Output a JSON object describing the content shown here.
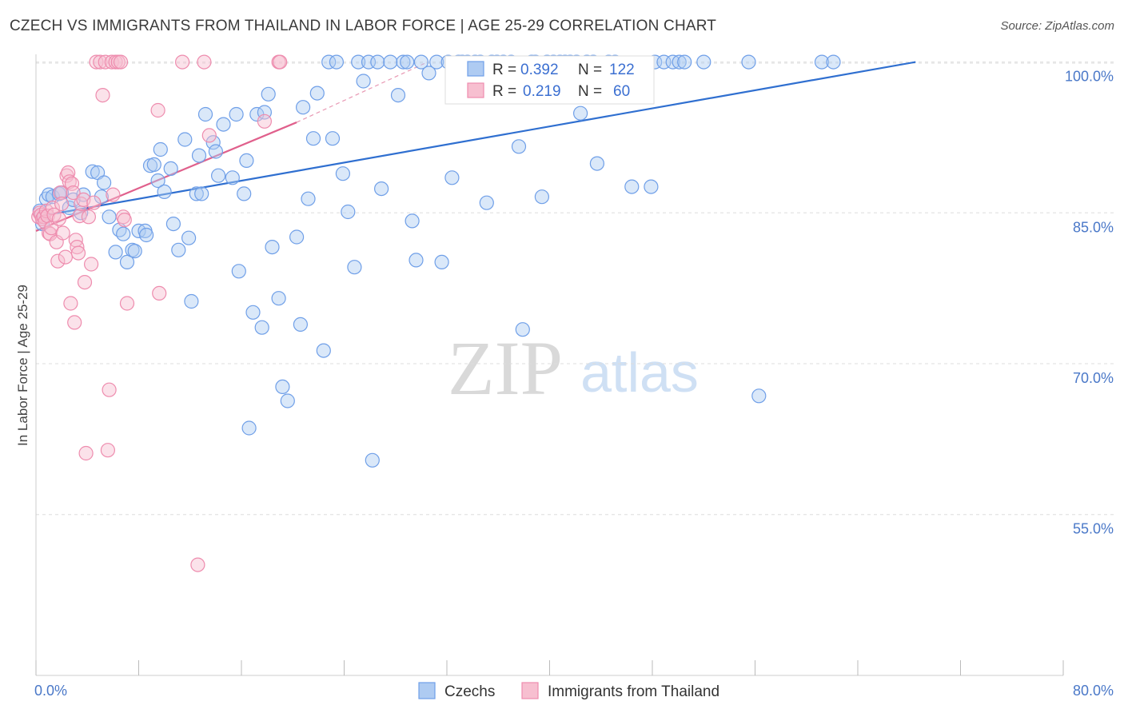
{
  "chart_data": {
    "type": "scatter",
    "title": "CZECH VS IMMIGRANTS FROM THAILAND IN LABOR FORCE | AGE 25-29 CORRELATION CHART",
    "source": "Source: ZipAtlas.com",
    "xlabel": "",
    "ylabel": "In Labor Force | Age 25-29",
    "xlim": [
      0,
      80
    ],
    "ylim": [
      39,
      101
    ],
    "x_tick_labels": [
      "0.0%",
      "80.0%"
    ],
    "y_ticks": [
      {
        "value": 100,
        "label": "100.0%"
      },
      {
        "value": 85,
        "label": "85.0%"
      },
      {
        "value": 70,
        "label": "70.0%"
      },
      {
        "value": 55,
        "label": "55.0%"
      }
    ],
    "watermark": {
      "zip": "ZIP",
      "atlas": "atlas"
    },
    "series": [
      {
        "name": "Czechs",
        "color": "#6f9fe8",
        "fill": "#aecbf2",
        "stats": {
          "r_label": "R =",
          "r": "0.392",
          "n_label": "N =",
          "n": "122"
        },
        "trend": {
          "x0": 0,
          "y0": 84.6,
          "x1": 68.5,
          "y1": 100
        },
        "points": [
          [
            0.3,
            85.2
          ],
          [
            0.5,
            83.9
          ],
          [
            0.8,
            86.4
          ],
          [
            1.0,
            86.8
          ],
          [
            1.3,
            86.6
          ],
          [
            1.8,
            86.9
          ],
          [
            2.0,
            87.0
          ],
          [
            2.6,
            85.5
          ],
          [
            2.9,
            86.3
          ],
          [
            3.5,
            85.0
          ],
          [
            3.7,
            86.8
          ],
          [
            4.4,
            89.1
          ],
          [
            4.8,
            89.0
          ],
          [
            5.1,
            86.6
          ],
          [
            5.3,
            88.0
          ],
          [
            5.7,
            84.6
          ],
          [
            6.2,
            81.1
          ],
          [
            6.5,
            83.3
          ],
          [
            6.8,
            82.9
          ],
          [
            7.1,
            80.1
          ],
          [
            7.5,
            81.3
          ],
          [
            7.7,
            81.2
          ],
          [
            8.0,
            83.2
          ],
          [
            8.5,
            83.2
          ],
          [
            8.6,
            82.8
          ],
          [
            8.9,
            89.7
          ],
          [
            9.2,
            89.8
          ],
          [
            9.5,
            88.2
          ],
          [
            9.7,
            91.3
          ],
          [
            10.0,
            87.1
          ],
          [
            10.5,
            89.4
          ],
          [
            10.7,
            83.9
          ],
          [
            11.1,
            81.3
          ],
          [
            11.6,
            92.3
          ],
          [
            11.9,
            82.5
          ],
          [
            12.1,
            76.2
          ],
          [
            12.5,
            86.9
          ],
          [
            12.7,
            90.7
          ],
          [
            12.9,
            86.9
          ],
          [
            13.2,
            94.8
          ],
          [
            13.8,
            92.0
          ],
          [
            14.0,
            91.1
          ],
          [
            14.2,
            88.7
          ],
          [
            14.6,
            93.8
          ],
          [
            15.3,
            88.5
          ],
          [
            15.6,
            94.8
          ],
          [
            15.8,
            79.2
          ],
          [
            16.2,
            86.9
          ],
          [
            16.4,
            90.2
          ],
          [
            16.6,
            63.6
          ],
          [
            16.9,
            75.1
          ],
          [
            17.2,
            94.8
          ],
          [
            17.6,
            73.6
          ],
          [
            17.8,
            95.0
          ],
          [
            18.1,
            96.8
          ],
          [
            18.4,
            81.6
          ],
          [
            18.9,
            76.5
          ],
          [
            19.2,
            67.7
          ],
          [
            19.6,
            66.3
          ],
          [
            20.3,
            82.6
          ],
          [
            20.6,
            73.9
          ],
          [
            20.8,
            95.5
          ],
          [
            21.2,
            86.4
          ],
          [
            21.6,
            92.4
          ],
          [
            21.9,
            96.9
          ],
          [
            22.4,
            71.3
          ],
          [
            22.8,
            100
          ],
          [
            23.1,
            92.4
          ],
          [
            23.4,
            100
          ],
          [
            23.9,
            88.9
          ],
          [
            24.3,
            85.1
          ],
          [
            24.8,
            79.6
          ],
          [
            25.1,
            100
          ],
          [
            25.5,
            98.1
          ],
          [
            25.9,
            100
          ],
          [
            26.2,
            60.4
          ],
          [
            26.6,
            100
          ],
          [
            26.9,
            87.4
          ],
          [
            27.6,
            100
          ],
          [
            28.2,
            96.7
          ],
          [
            28.6,
            100
          ],
          [
            28.9,
            100
          ],
          [
            29.3,
            84.2
          ],
          [
            29.6,
            80.3
          ],
          [
            30.0,
            100
          ],
          [
            30.6,
            98.9
          ],
          [
            31.2,
            100
          ],
          [
            31.6,
            80.1
          ],
          [
            32.1,
            100
          ],
          [
            32.4,
            88.5
          ],
          [
            32.9,
            100
          ],
          [
            33.2,
            100
          ],
          [
            33.6,
            100
          ],
          [
            34.2,
            100
          ],
          [
            34.6,
            100
          ],
          [
            35.1,
            86.0
          ],
          [
            35.5,
            100
          ],
          [
            35.9,
            100
          ],
          [
            36.4,
            100
          ],
          [
            37.0,
            100
          ],
          [
            37.6,
            91.6
          ],
          [
            37.9,
            73.4
          ],
          [
            38.6,
            100
          ],
          [
            38.9,
            100
          ],
          [
            39.4,
            86.6
          ],
          [
            39.8,
            100
          ],
          [
            40.3,
            100
          ],
          [
            40.8,
            100
          ],
          [
            41.2,
            100
          ],
          [
            41.6,
            100
          ],
          [
            42.1,
            100
          ],
          [
            42.4,
            94.9
          ],
          [
            42.9,
            100
          ],
          [
            43.4,
            100
          ],
          [
            43.7,
            89.9
          ],
          [
            44.6,
            100
          ],
          [
            45.1,
            100
          ],
          [
            46.4,
            87.6
          ],
          [
            47.9,
            87.6
          ],
          [
            48.2,
            100
          ],
          [
            48.9,
            100
          ],
          [
            49.6,
            100
          ],
          [
            50.1,
            100
          ],
          [
            50.5,
            100
          ],
          [
            52.0,
            100
          ],
          [
            55.5,
            100
          ],
          [
            56.3,
            66.8
          ],
          [
            61.2,
            100
          ],
          [
            62.1,
            100
          ]
        ]
      },
      {
        "name": "Immigrants from Thailand",
        "color": "#ee8cae",
        "fill": "#f7bfd0",
        "stats": {
          "r_label": "R =",
          "r": "0.219",
          "n_label": "N =",
          "n": "60"
        },
        "trend": {
          "x0": 0,
          "y0": 83.2,
          "x1": 20.3,
          "y1": 94.0
        },
        "trend_dashed": {
          "x0": 20.3,
          "y0": 94.0,
          "x1": 30.5,
          "y1": 100
        },
        "points": [
          [
            0.2,
            84.6
          ],
          [
            0.3,
            85.0
          ],
          [
            0.4,
            84.8
          ],
          [
            0.5,
            84.4
          ],
          [
            0.6,
            84.6
          ],
          [
            0.7,
            84.1
          ],
          [
            0.8,
            85.2
          ],
          [
            0.9,
            84.7
          ],
          [
            1.0,
            83.0
          ],
          [
            1.1,
            82.9
          ],
          [
            1.2,
            83.5
          ],
          [
            1.3,
            85.5
          ],
          [
            1.4,
            84.8
          ],
          [
            1.6,
            82.1
          ],
          [
            1.7,
            80.2
          ],
          [
            1.8,
            84.4
          ],
          [
            1.9,
            87.0
          ],
          [
            2.0,
            85.9
          ],
          [
            2.1,
            83.0
          ],
          [
            2.3,
            80.6
          ],
          [
            2.4,
            88.7
          ],
          [
            2.5,
            89.0
          ],
          [
            2.6,
            88.1
          ],
          [
            2.7,
            76.0
          ],
          [
            2.8,
            87.9
          ],
          [
            2.9,
            87.0
          ],
          [
            3.0,
            74.1
          ],
          [
            3.1,
            82.3
          ],
          [
            3.2,
            81.6
          ],
          [
            3.3,
            81.0
          ],
          [
            3.4,
            84.7
          ],
          [
            3.5,
            85.9
          ],
          [
            3.7,
            86.3
          ],
          [
            3.8,
            78.1
          ],
          [
            3.9,
            61.1
          ],
          [
            4.1,
            84.6
          ],
          [
            4.3,
            79.9
          ],
          [
            4.5,
            86.0
          ],
          [
            4.7,
            100
          ],
          [
            5.0,
            100
          ],
          [
            5.2,
            96.7
          ],
          [
            5.4,
            100
          ],
          [
            5.6,
            61.4
          ],
          [
            5.7,
            67.4
          ],
          [
            5.9,
            100
          ],
          [
            6.0,
            86.8
          ],
          [
            6.2,
            100
          ],
          [
            6.4,
            100
          ],
          [
            6.6,
            100
          ],
          [
            6.8,
            84.6
          ],
          [
            6.9,
            84.3
          ],
          [
            7.1,
            76.0
          ],
          [
            9.5,
            95.2
          ],
          [
            9.6,
            77.0
          ],
          [
            11.4,
            100
          ],
          [
            12.6,
            50.0
          ],
          [
            13.1,
            100
          ],
          [
            13.5,
            92.7
          ],
          [
            17.8,
            94.1
          ],
          [
            18.9,
            100
          ],
          [
            19.0,
            100
          ]
        ]
      }
    ]
  },
  "legend": {
    "items": [
      "Czechs",
      "Immigrants from Thailand"
    ]
  }
}
